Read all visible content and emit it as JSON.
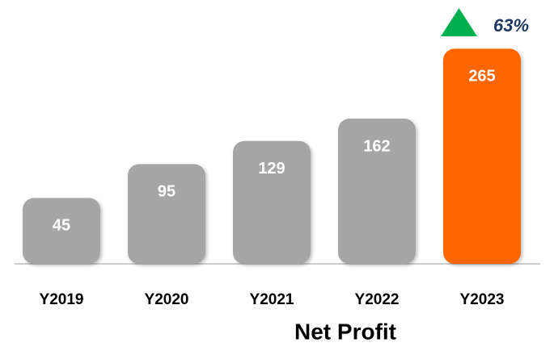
{
  "chart_data": {
    "type": "bar",
    "title": "Net Profit",
    "categories": [
      "Y2019",
      "Y2020",
      "Y2021",
      "Y2022",
      "Y2023"
    ],
    "values": [
      45,
      95,
      129,
      162,
      265
    ],
    "colors": [
      "#a6a6a6",
      "#a6a6a6",
      "#a6a6a6",
      "#a6a6a6",
      "#ff6600"
    ],
    "ylim": [
      -52,
      300
    ],
    "annotation": "63%",
    "annotation_color": "#00b050"
  }
}
